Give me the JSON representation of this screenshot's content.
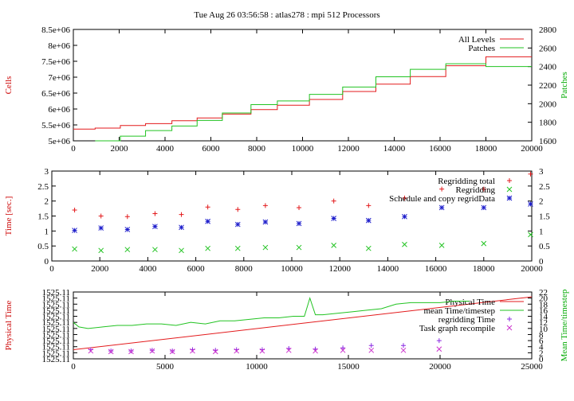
{
  "title": "Tue Aug 26 03:56:58 : atlas278 : mpi 512 Processors",
  "colors": {
    "red": "#e31a1c",
    "green": "#22c322",
    "blue": "#1f1fcc",
    "purple": "#cc33cc",
    "axis_red": "#cc0000",
    "axis_green": "#00aa00"
  },
  "chart_data": [
    {
      "type": "line",
      "ylabel": "Cells",
      "y2label": "Patches",
      "xlim": [
        0,
        20000
      ],
      "ylim": [
        5000000,
        8500000
      ],
      "y2lim": [
        1600,
        2800
      ],
      "xticks": [
        "0",
        "2000",
        "4000",
        "6000",
        "8000",
        "10000",
        "12000",
        "14000",
        "16000",
        "18000",
        "20000"
      ],
      "yticks": [
        "5e+06",
        "5.5e+06",
        "6e+06",
        "6.5e+06",
        "7e+06",
        "7.5e+06",
        "8e+06",
        "8.5e+06"
      ],
      "y2ticks": [
        "1600",
        "1800",
        "2000",
        "2200",
        "2400",
        "2600",
        "2800"
      ],
      "legend_position": "top-right",
      "series": [
        {
          "name": "All Levels",
          "color": "#e31a1c",
          "axis": "y",
          "step": true,
          "x": [
            0,
            950,
            2050,
            3150,
            4300,
            5400,
            6500,
            7750,
            8900,
            10300,
            11750,
            13200,
            14700,
            16250,
            18000,
            19950
          ],
          "y": [
            5370000,
            5400000,
            5480000,
            5540000,
            5630000,
            5720000,
            5840000,
            5980000,
            6120000,
            6300000,
            6550000,
            6780000,
            7020000,
            7360000,
            7640000,
            7640000
          ]
        },
        {
          "name": "Patches",
          "color": "#22c322",
          "axis": "y2",
          "step": true,
          "x": [
            950,
            2050,
            3150,
            4300,
            5400,
            6500,
            7750,
            8900,
            10300,
            11750,
            13200,
            14700,
            16250,
            18000,
            19950
          ],
          "y": [
            1600,
            1650,
            1710,
            1760,
            1820,
            1900,
            1990,
            2030,
            2100,
            2180,
            2290,
            2370,
            2430,
            2400,
            2400
          ]
        }
      ]
    },
    {
      "type": "scatter",
      "ylabel": "Time [sec.]",
      "xlim": [
        0,
        20000
      ],
      "ylim": [
        0,
        3
      ],
      "xticks": [
        "0",
        "2000",
        "4000",
        "6000",
        "8000",
        "10000",
        "12000",
        "14000",
        "16000",
        "18000",
        "20000"
      ],
      "yticks": [
        "0",
        "0.5",
        "1",
        "1.5",
        "2",
        "2.5",
        "3"
      ],
      "y2ticks": [
        "0",
        "0.5",
        "1",
        "1.5",
        "2",
        "2.5",
        "3"
      ],
      "legend_position": "top-right",
      "series": [
        {
          "name": "Regridding total",
          "color": "#e31a1c",
          "marker": "plus",
          "x": [
            950,
            2050,
            3150,
            4300,
            5400,
            6500,
            7750,
            8900,
            10300,
            11750,
            13200,
            14700,
            16250,
            18000,
            19950
          ],
          "y": [
            1.7,
            1.5,
            1.48,
            1.58,
            1.55,
            1.8,
            1.72,
            1.85,
            1.78,
            2.0,
            1.85,
            2.1,
            2.4,
            2.4,
            2.9
          ]
        },
        {
          "name": "Regridding",
          "color": "#22c322",
          "marker": "cross",
          "x": [
            950,
            2050,
            3150,
            4300,
            5400,
            6500,
            7750,
            8900,
            10300,
            11750,
            13200,
            14700,
            16250,
            18000,
            19950
          ],
          "y": [
            0.4,
            0.35,
            0.38,
            0.38,
            0.35,
            0.42,
            0.42,
            0.45,
            0.45,
            0.52,
            0.42,
            0.55,
            0.52,
            0.58,
            0.88
          ]
        },
        {
          "name": "Schedule and copy regridData",
          "color": "#1f1fcc",
          "marker": "star",
          "x": [
            950,
            2050,
            3150,
            4300,
            5400,
            6500,
            7750,
            8900,
            10300,
            11750,
            13200,
            14700,
            16250,
            18000,
            19950
          ],
          "y": [
            1.02,
            1.1,
            1.05,
            1.15,
            1.12,
            1.32,
            1.22,
            1.3,
            1.25,
            1.42,
            1.35,
            1.48,
            1.78,
            1.78,
            1.9
          ]
        }
      ]
    },
    {
      "type": "line",
      "ylabel": "Physical Time",
      "y2label": "Mean Time/timestep",
      "xlim": [
        0,
        25000
      ],
      "ylim": [
        0,
        11
      ],
      "y2lim": [
        0,
        22
      ],
      "xticks": [
        "0",
        "5000",
        "10000",
        "15000",
        "20000",
        "25000"
      ],
      "yticks": [
        "1525.11",
        "1525.11",
        "1525.11",
        "1525.11",
        "1525.11",
        "1525.11",
        "1525.11",
        "1525.11",
        "1525.11",
        "1525.11",
        "1525.11",
        "1525.11"
      ],
      "y2ticks": [
        "0",
        "2",
        "4",
        "6",
        "8",
        "10",
        "12",
        "14",
        "16",
        "18",
        "20",
        "22"
      ],
      "legend_position": "top-right",
      "series": [
        {
          "name": "Physical Time",
          "color": "#e31a1c",
          "axis": "y",
          "x": [
            0,
            25000
          ],
          "y": [
            1.5,
            10.2
          ]
        },
        {
          "name": "mean Time/timestep",
          "color": "#22c322",
          "axis": "y2",
          "x": [
            0,
            300,
            800,
            1600,
            2400,
            3200,
            4000,
            4800,
            5600,
            6400,
            7200,
            8000,
            8800,
            9600,
            10400,
            11200,
            12000,
            12600,
            12900,
            13200,
            13600,
            14400,
            15200,
            16000,
            16800,
            17600,
            18400,
            19200,
            20000,
            20800,
            21600
          ],
          "y": [
            12,
            10.5,
            10,
            10.5,
            11,
            11,
            11.5,
            11.5,
            11,
            12,
            11.5,
            12.5,
            12.5,
            13,
            13.5,
            13.5,
            14,
            14,
            20,
            14.5,
            14.5,
            15,
            15.5,
            16,
            16.5,
            18,
            18.5,
            18.5,
            18.5,
            19,
            19
          ]
        },
        {
          "name": "regridding Time",
          "color": "#8a2be2",
          "marker": "plus",
          "x": [
            950,
            2050,
            3150,
            4300,
            5400,
            6500,
            7750,
            8900,
            10300,
            11750,
            13200,
            14700,
            16250,
            18000,
            19950
          ],
          "y": [
            1.5,
            1.3,
            1.3,
            1.4,
            1.3,
            1.5,
            1.4,
            1.5,
            1.5,
            1.7,
            1.6,
            1.8,
            2.2,
            2.2,
            3.0
          ]
        },
        {
          "name": "Task graph recompile",
          "color": "#cc33cc",
          "marker": "cross",
          "x": [
            950,
            2050,
            3150,
            4300,
            5400,
            6500,
            7750,
            8900,
            10300,
            11750,
            13200,
            14700,
            16250,
            18000,
            19950
          ],
          "y": [
            1.3,
            1.2,
            1.2,
            1.3,
            1.2,
            1.3,
            1.2,
            1.3,
            1.3,
            1.4,
            1.3,
            1.4,
            1.4,
            1.4,
            1.6
          ]
        }
      ]
    }
  ]
}
